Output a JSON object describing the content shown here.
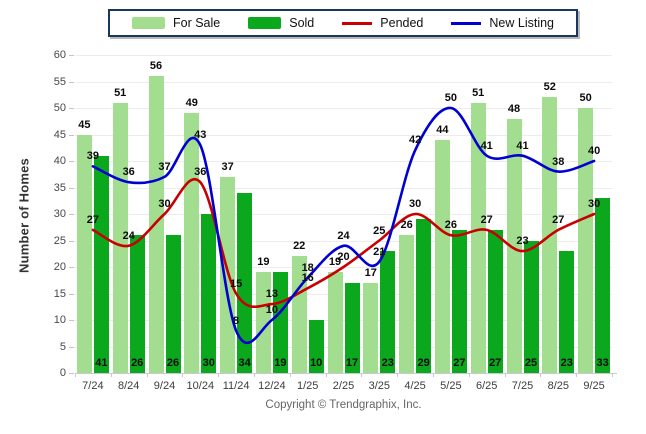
{
  "chart_data": {
    "type": "bar",
    "categories": [
      "7/24",
      "8/24",
      "9/24",
      "10/24",
      "11/24",
      "12/24",
      "1/25",
      "2/25",
      "3/25",
      "4/25",
      "5/25",
      "6/25",
      "7/25",
      "8/25",
      "9/25"
    ],
    "series": [
      {
        "name": "For Sale",
        "kind": "bar",
        "color": "#A3DD90",
        "values": [
          45,
          51,
          56,
          49,
          37,
          19,
          22,
          19,
          17,
          26,
          44,
          51,
          48,
          52,
          50
        ]
      },
      {
        "name": "Sold",
        "kind": "bar",
        "color": "#0BA81E",
        "values": [
          41,
          26,
          26,
          30,
          34,
          19,
          10,
          17,
          23,
          29,
          27,
          27,
          25,
          23,
          33
        ]
      },
      {
        "name": "Pended",
        "kind": "line",
        "color": "#C80000",
        "values": [
          27,
          24,
          30,
          36,
          15,
          13,
          16,
          20,
          25,
          30,
          26,
          27,
          23,
          27,
          30
        ]
      },
      {
        "name": "New Listing",
        "kind": "line",
        "color": "#0000D2",
        "values": [
          39,
          36,
          37,
          43,
          8,
          10,
          18,
          24,
          21,
          42,
          50,
          41,
          41,
          38,
          40
        ]
      }
    ],
    "title": "",
    "xlabel": "",
    "ylabel": "Number of Homes",
    "ylim": [
      0,
      60
    ],
    "ytick_step": 5,
    "grid": true,
    "legend_position": "top"
  },
  "footer": {
    "copyright": "Copyright © Trendgraphix, Inc."
  }
}
